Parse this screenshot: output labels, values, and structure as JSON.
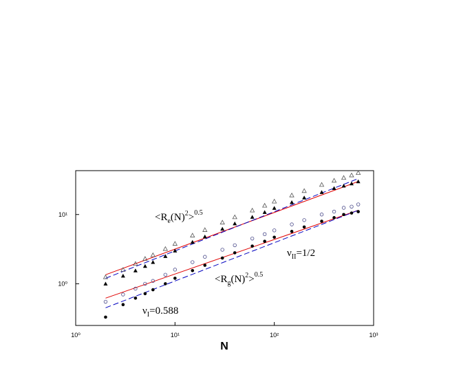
{
  "chart_data": {
    "type": "scatter",
    "xlabel": "N",
    "log_x": true,
    "log_y": true,
    "xlim": [
      1,
      1000
    ],
    "ylim": [
      0.25,
      43
    ],
    "xticks": [
      {
        "value": 1,
        "label": "10⁰"
      },
      {
        "value": 10,
        "label": "10¹"
      },
      {
        "value": 100,
        "label": "10²"
      },
      {
        "value": 1000,
        "label": "10³"
      }
    ],
    "yticks": [
      {
        "value": 1,
        "label": "10⁰"
      },
      {
        "value": 10,
        "label": "10¹"
      }
    ],
    "x": [
      2,
      3,
      4,
      5,
      6,
      8,
      10,
      15,
      20,
      30,
      40,
      60,
      80,
      100,
      150,
      200,
      300,
      400,
      500,
      600,
      700
    ],
    "series": [
      {
        "marker": "open-triangle",
        "color": "#555555",
        "values": [
          1.25,
          1.6,
          1.95,
          2.3,
          2.6,
          3.2,
          3.8,
          5.0,
          6.0,
          7.7,
          9.2,
          11.5,
          13.5,
          15.5,
          19,
          22,
          27,
          31,
          34,
          37,
          40
        ]
      },
      {
        "marker": "filled-triangle",
        "color": "#000000",
        "values": [
          1.0,
          1.3,
          1.55,
          1.8,
          2.05,
          2.5,
          3.0,
          4.0,
          4.8,
          6.2,
          7.4,
          9.2,
          10.8,
          12.4,
          15,
          17.5,
          21,
          24,
          26,
          28,
          30
        ]
      },
      {
        "marker": "open-circle",
        "color": "#4a4a8a",
        "values": [
          0.55,
          0.7,
          0.85,
          1.0,
          1.1,
          1.35,
          1.6,
          2.05,
          2.45,
          3.1,
          3.6,
          4.5,
          5.2,
          5.9,
          7.2,
          8.3,
          10,
          11,
          12.5,
          13,
          14
        ]
      },
      {
        "marker": "filled-circle",
        "color": "#000000",
        "values": [
          0.33,
          0.5,
          0.62,
          0.72,
          0.82,
          1.0,
          1.2,
          1.55,
          1.85,
          2.35,
          2.8,
          3.5,
          4.1,
          4.7,
          5.7,
          6.6,
          8,
          9,
          10,
          10.5,
          11
        ]
      }
    ],
    "fits": [
      {
        "x": [
          2,
          700
        ],
        "values": [
          1.35,
          30
        ],
        "color": "#e00000",
        "style": "solid"
      },
      {
        "x": [
          2,
          700
        ],
        "values": [
          1.2,
          33
        ],
        "color": "#0000c0",
        "style": "dashed"
      },
      {
        "x": [
          2,
          700
        ],
        "values": [
          0.62,
          11.5
        ],
        "color": "#e00000",
        "style": "solid"
      },
      {
        "x": [
          2,
          700
        ],
        "values": [
          0.45,
          11.5
        ],
        "color": "#0000c0",
        "style": "dashed"
      }
    ],
    "annotations": [
      [
        "<R",
        "e",
        "(N)",
        "2",
        ">",
        "0.5"
      ],
      [
        "ν",
        "II",
        "=1/2"
      ],
      [
        "<R",
        "g",
        "(N)",
        "2",
        ">",
        "0.5"
      ],
      [
        "ν",
        "I",
        "=0.588"
      ]
    ]
  }
}
